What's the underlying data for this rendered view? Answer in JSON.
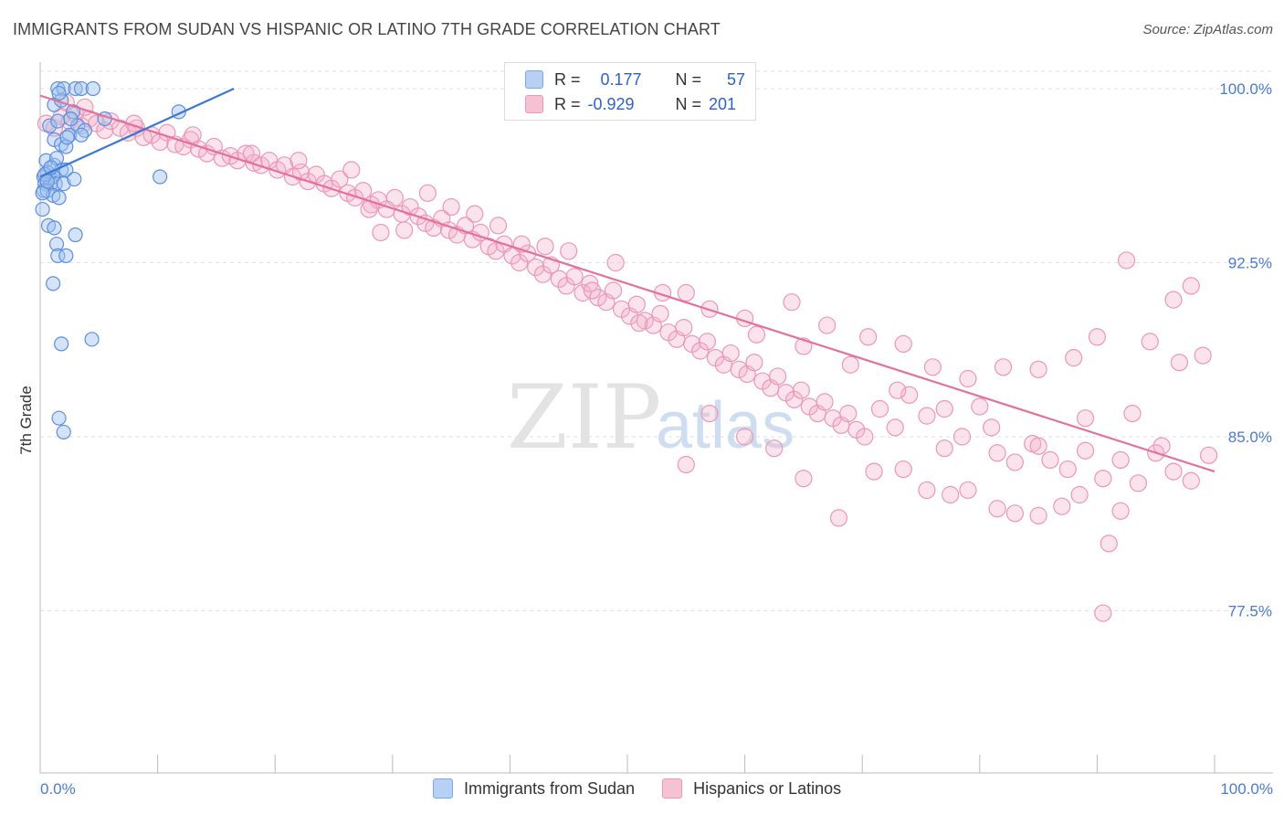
{
  "title": "IMMIGRANTS FROM SUDAN VS HISPANIC OR LATINO 7TH GRADE CORRELATION CHART",
  "source": "Source: ZipAtlas.com",
  "watermark": {
    "zip": "ZIP",
    "atlas": "atlas"
  },
  "colors": {
    "blue": "#3a78d4",
    "blue_fill": "#b7d0f3",
    "pink": "#e4719c",
    "pink_fill": "#f6c1d3",
    "axis_text": "#4a7bd0"
  },
  "legend": {
    "rows": [
      {
        "r_label": "R =",
        "r_value": "0.177",
        "n_label": "N =",
        "n_value": "57"
      },
      {
        "r_label": "R =",
        "r_value": "-0.929",
        "n_label": "N =",
        "n_value": "201"
      }
    ]
  },
  "chart_data": {
    "type": "scatter",
    "ylabel": "7th Grade",
    "xlim": [
      0,
      100
    ],
    "ylim": [
      70.0,
      101.0
    ],
    "x_tick_labels": {
      "left": "0.0%",
      "right": "100.0%"
    },
    "y_ticks": [
      {
        "value": 100.0,
        "label": "100.0%"
      },
      {
        "value": 92.5,
        "label": "92.5%"
      },
      {
        "value": 85.0,
        "label": "85.0%"
      },
      {
        "value": 77.5,
        "label": "77.5%"
      }
    ],
    "series": [
      {
        "name": "Immigrants from Sudan",
        "color": "#3a78d4",
        "R": 0.177,
        "N": 57,
        "trend": [
          [
            0.0,
            96.2
          ],
          [
            16.5,
            100.0
          ]
        ],
        "points": [
          [
            1.5,
            100.0
          ],
          [
            2.0,
            100.0
          ],
          [
            3.0,
            100.0
          ],
          [
            3.5,
            100.0
          ],
          [
            4.5,
            100.0
          ],
          [
            1.2,
            99.3
          ],
          [
            1.8,
            99.5
          ],
          [
            2.8,
            99.0
          ],
          [
            5.5,
            98.7
          ],
          [
            0.8,
            98.4
          ],
          [
            1.5,
            98.6
          ],
          [
            3.2,
            98.4
          ],
          [
            3.8,
            98.2
          ],
          [
            2.5,
            98.0
          ],
          [
            3.5,
            98.0
          ],
          [
            1.2,
            97.8
          ],
          [
            1.8,
            97.6
          ],
          [
            2.2,
            97.5
          ],
          [
            0.5,
            96.9
          ],
          [
            1.2,
            96.7
          ],
          [
            1.8,
            96.5
          ],
          [
            0.6,
            96.4
          ],
          [
            2.2,
            96.5
          ],
          [
            0.3,
            96.2
          ],
          [
            0.8,
            96.1
          ],
          [
            1.1,
            96.2
          ],
          [
            0.4,
            95.9
          ],
          [
            0.9,
            95.9
          ],
          [
            1.3,
            95.9
          ],
          [
            2.0,
            95.9
          ],
          [
            2.9,
            96.1
          ],
          [
            0.3,
            95.6
          ],
          [
            0.6,
            95.6
          ],
          [
            1.1,
            95.4
          ],
          [
            1.6,
            95.3
          ],
          [
            0.2,
            94.8
          ],
          [
            0.7,
            94.1
          ],
          [
            1.2,
            94.0
          ],
          [
            3.0,
            93.7
          ],
          [
            1.4,
            93.3
          ],
          [
            1.5,
            92.8
          ],
          [
            2.2,
            92.8
          ],
          [
            1.1,
            91.6
          ],
          [
            1.8,
            89.0
          ],
          [
            4.4,
            89.2
          ],
          [
            1.6,
            85.8
          ],
          [
            2.0,
            85.2
          ],
          [
            10.2,
            96.2
          ],
          [
            11.8,
            99.0
          ],
          [
            0.4,
            96.3
          ],
          [
            0.2,
            95.5
          ],
          [
            1.6,
            99.8
          ],
          [
            2.6,
            98.7
          ],
          [
            1.4,
            97.0
          ],
          [
            0.9,
            96.6
          ],
          [
            2.3,
            97.9
          ],
          [
            0.6,
            96.0
          ]
        ]
      },
      {
        "name": "Hispanics or Latinos",
        "color": "#e4719c",
        "R": -0.929,
        "N": 201,
        "trend": [
          [
            0.0,
            99.7
          ],
          [
            100.0,
            83.5
          ]
        ],
        "points": [
          [
            0.5,
            98.5
          ],
          [
            1.2,
            98.3
          ],
          [
            1.8,
            98.8
          ],
          [
            2.5,
            98.6
          ],
          [
            3.0,
            98.9
          ],
          [
            3.5,
            98.4
          ],
          [
            4.2,
            98.7
          ],
          [
            4.8,
            98.5
          ],
          [
            5.5,
            98.2
          ],
          [
            6.0,
            98.6
          ],
          [
            6.8,
            98.3
          ],
          [
            7.5,
            98.1
          ],
          [
            8.2,
            98.3
          ],
          [
            8.8,
            97.9
          ],
          [
            9.5,
            98.0
          ],
          [
            10.2,
            97.7
          ],
          [
            10.8,
            98.1
          ],
          [
            11.5,
            97.6
          ],
          [
            12.2,
            97.5
          ],
          [
            12.8,
            97.8
          ],
          [
            13.5,
            97.4
          ],
          [
            14.2,
            97.2
          ],
          [
            14.8,
            97.5
          ],
          [
            15.5,
            97.0
          ],
          [
            16.2,
            97.1
          ],
          [
            16.8,
            96.9
          ],
          [
            17.5,
            97.2
          ],
          [
            18.2,
            96.8
          ],
          [
            18.8,
            96.7
          ],
          [
            19.5,
            96.9
          ],
          [
            20.2,
            96.5
          ],
          [
            20.8,
            96.7
          ],
          [
            21.5,
            96.2
          ],
          [
            22.2,
            96.4
          ],
          [
            22.8,
            96.0
          ],
          [
            23.5,
            96.3
          ],
          [
            24.2,
            95.9
          ],
          [
            24.8,
            95.7
          ],
          [
            25.5,
            96.1
          ],
          [
            26.2,
            95.5
          ],
          [
            26.8,
            95.3
          ],
          [
            27.5,
            95.6
          ],
          [
            28.2,
            95.0
          ],
          [
            28.8,
            95.2
          ],
          [
            29.5,
            94.8
          ],
          [
            30.2,
            95.3
          ],
          [
            30.8,
            94.6
          ],
          [
            31.5,
            94.9
          ],
          [
            32.2,
            94.5
          ],
          [
            32.8,
            94.2
          ],
          [
            33.5,
            94.0
          ],
          [
            34.2,
            94.4
          ],
          [
            34.8,
            93.9
          ],
          [
            35.5,
            93.7
          ],
          [
            36.2,
            94.1
          ],
          [
            36.8,
            93.5
          ],
          [
            37.5,
            93.8
          ],
          [
            38.2,
            93.2
          ],
          [
            38.8,
            93.0
          ],
          [
            39.5,
            93.3
          ],
          [
            40.2,
            92.8
          ],
          [
            40.8,
            92.5
          ],
          [
            41.5,
            92.9
          ],
          [
            42.2,
            92.3
          ],
          [
            42.8,
            92.0
          ],
          [
            43.5,
            92.4
          ],
          [
            44.2,
            91.8
          ],
          [
            44.8,
            91.5
          ],
          [
            45.5,
            91.9
          ],
          [
            46.2,
            91.2
          ],
          [
            46.8,
            91.6
          ],
          [
            47.5,
            91.0
          ],
          [
            48.2,
            90.8
          ],
          [
            48.8,
            91.3
          ],
          [
            49.5,
            90.5
          ],
          [
            50.2,
            90.2
          ],
          [
            50.8,
            90.7
          ],
          [
            51.5,
            90.0
          ],
          [
            52.2,
            89.8
          ],
          [
            52.8,
            90.3
          ],
          [
            53.5,
            89.5
          ],
          [
            54.2,
            89.2
          ],
          [
            54.8,
            89.7
          ],
          [
            55.5,
            89.0
          ],
          [
            56.2,
            88.7
          ],
          [
            56.8,
            89.1
          ],
          [
            57.5,
            88.4
          ],
          [
            58.2,
            88.1
          ],
          [
            58.8,
            88.6
          ],
          [
            59.5,
            87.9
          ],
          [
            60.2,
            87.7
          ],
          [
            60.8,
            88.2
          ],
          [
            61.5,
            87.4
          ],
          [
            62.2,
            87.1
          ],
          [
            62.8,
            87.6
          ],
          [
            63.5,
            86.9
          ],
          [
            64.2,
            86.6
          ],
          [
            64.8,
            87.0
          ],
          [
            65.5,
            86.3
          ],
          [
            66.2,
            86.0
          ],
          [
            66.8,
            86.5
          ],
          [
            67.5,
            85.8
          ],
          [
            68.2,
            85.5
          ],
          [
            68.8,
            86.0
          ],
          [
            69.5,
            85.3
          ],
          [
            70.2,
            85.0
          ],
          [
            71.5,
            86.2
          ],
          [
            72.8,
            85.4
          ],
          [
            74.0,
            86.8
          ],
          [
            75.5,
            85.9
          ],
          [
            77.0,
            84.5
          ],
          [
            78.5,
            85.0
          ],
          [
            80.0,
            86.3
          ],
          [
            81.5,
            84.3
          ],
          [
            83.0,
            83.9
          ],
          [
            84.5,
            84.7
          ],
          [
            86.0,
            84.0
          ],
          [
            87.5,
            83.6
          ],
          [
            89.0,
            84.4
          ],
          [
            90.5,
            83.2
          ],
          [
            92.0,
            84.0
          ],
          [
            93.5,
            83.0
          ],
          [
            95.0,
            84.3
          ],
          [
            96.5,
            83.5
          ],
          [
            98.0,
            83.1
          ],
          [
            99.5,
            84.2
          ],
          [
            29.0,
            93.8
          ],
          [
            33.0,
            95.5
          ],
          [
            37.0,
            94.6
          ],
          [
            41.0,
            93.3
          ],
          [
            45.0,
            93.0
          ],
          [
            49.0,
            92.5
          ],
          [
            53.0,
            91.2
          ],
          [
            57.0,
            90.5
          ],
          [
            61.0,
            89.4
          ],
          [
            65.0,
            88.9
          ],
          [
            69.0,
            88.1
          ],
          [
            73.0,
            87.0
          ],
          [
            77.0,
            86.2
          ],
          [
            81.0,
            85.4
          ],
          [
            85.0,
            84.6
          ],
          [
            89.0,
            85.8
          ],
          [
            93.0,
            86.0
          ],
          [
            97.0,
            88.2
          ],
          [
            99.0,
            88.5
          ],
          [
            98.0,
            91.5
          ],
          [
            96.5,
            90.9
          ],
          [
            92.5,
            92.6
          ],
          [
            90.0,
            89.3
          ],
          [
            88.0,
            88.4
          ],
          [
            85.0,
            87.9
          ],
          [
            82.0,
            88.0
          ],
          [
            79.0,
            87.5
          ],
          [
            76.0,
            88.0
          ],
          [
            73.5,
            89.0
          ],
          [
            70.5,
            89.3
          ],
          [
            67.0,
            89.8
          ],
          [
            64.0,
            90.8
          ],
          [
            60.0,
            90.1
          ],
          [
            55.0,
            91.2
          ],
          [
            51.0,
            89.9
          ],
          [
            47.0,
            91.3
          ],
          [
            43.0,
            93.2
          ],
          [
            39.0,
            94.1
          ],
          [
            35.0,
            94.9
          ],
          [
            31.0,
            93.9
          ],
          [
            28.0,
            94.8
          ],
          [
            26.5,
            96.5
          ],
          [
            22.0,
            96.9
          ],
          [
            18.0,
            97.2
          ],
          [
            13.0,
            98.0
          ],
          [
            8.0,
            98.5
          ],
          [
            3.8,
            99.2
          ],
          [
            2.2,
            99.4
          ],
          [
            94.5,
            89.1
          ],
          [
            95.5,
            84.6
          ],
          [
            92.0,
            81.8
          ],
          [
            91.0,
            80.4
          ],
          [
            90.5,
            77.4
          ],
          [
            88.5,
            82.5
          ],
          [
            87.0,
            82.0
          ],
          [
            85.0,
            81.6
          ],
          [
            83.0,
            81.7
          ],
          [
            81.5,
            81.9
          ],
          [
            79.0,
            82.7
          ],
          [
            77.5,
            82.5
          ],
          [
            75.5,
            82.7
          ],
          [
            73.5,
            83.6
          ],
          [
            71.0,
            83.5
          ],
          [
            68.0,
            81.5
          ],
          [
            65.0,
            83.2
          ],
          [
            62.5,
            84.5
          ],
          [
            60.0,
            85.0
          ],
          [
            57.0,
            86.0
          ],
          [
            55.0,
            83.8
          ]
        ]
      }
    ]
  },
  "bottom_legend": [
    "Immigrants from Sudan",
    "Hispanics or Latinos"
  ]
}
